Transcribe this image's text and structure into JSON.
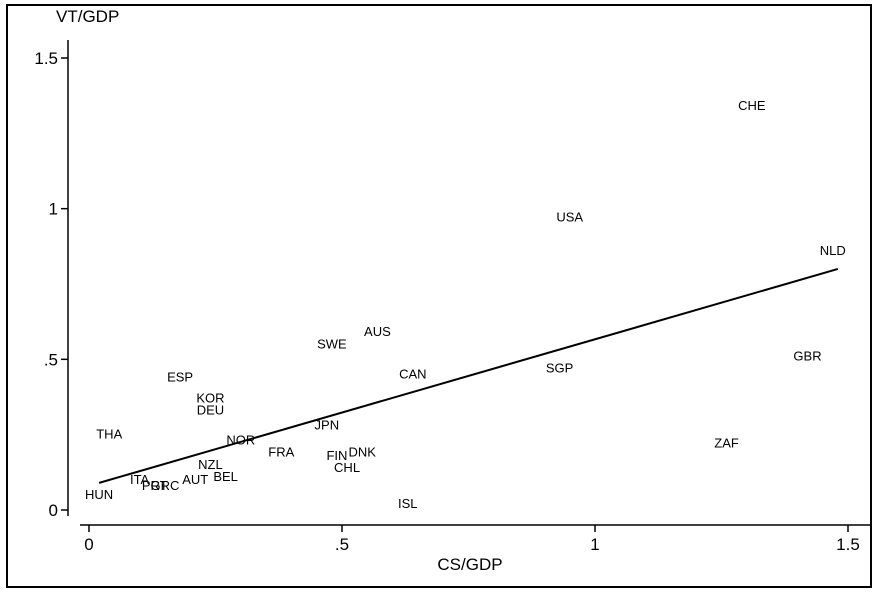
{
  "chart_data": {
    "type": "scatter",
    "xlabel": "CS/GDP",
    "ylabel": "VT/GDP",
    "xlim": [
      0,
      1.5
    ],
    "ylim": [
      0,
      1.5
    ],
    "x_ticks": [
      {
        "value": 0,
        "label": "0"
      },
      {
        "value": 0.5,
        "label": ".5"
      },
      {
        "value": 1,
        "label": "1"
      },
      {
        "value": 1.5,
        "label": "1.5"
      }
    ],
    "y_ticks": [
      {
        "value": 0,
        "label": "0"
      },
      {
        "value": 0.5,
        "label": ".5"
      },
      {
        "value": 1,
        "label": "1"
      },
      {
        "value": 1.5,
        "label": "1.5"
      }
    ],
    "grid": false,
    "points": [
      {
        "label": "CHE",
        "x": 1.31,
        "y": 1.34
      },
      {
        "label": "USA",
        "x": 0.95,
        "y": 0.97
      },
      {
        "label": "NLD",
        "x": 1.47,
        "y": 0.86
      },
      {
        "label": "GBR",
        "x": 1.42,
        "y": 0.51
      },
      {
        "label": "SGP",
        "x": 0.93,
        "y": 0.47
      },
      {
        "label": "ZAF",
        "x": 1.26,
        "y": 0.22
      },
      {
        "label": "AUS",
        "x": 0.57,
        "y": 0.59
      },
      {
        "label": "SWE",
        "x": 0.48,
        "y": 0.55
      },
      {
        "label": "CAN",
        "x": 0.64,
        "y": 0.45
      },
      {
        "label": "ESP",
        "x": 0.18,
        "y": 0.44
      },
      {
        "label": "KOR",
        "x": 0.24,
        "y": 0.37
      },
      {
        "label": "DEU",
        "x": 0.24,
        "y": 0.33
      },
      {
        "label": "JPN",
        "x": 0.47,
        "y": 0.28
      },
      {
        "label": "THA",
        "x": 0.04,
        "y": 0.25
      },
      {
        "label": "NOR",
        "x": 0.3,
        "y": 0.23
      },
      {
        "label": "FRA",
        "x": 0.38,
        "y": 0.19
      },
      {
        "label": "FIN",
        "x": 0.49,
        "y": 0.18
      },
      {
        "label": "DNK",
        "x": 0.54,
        "y": 0.19
      },
      {
        "label": "CHL",
        "x": 0.51,
        "y": 0.14
      },
      {
        "label": "NZL",
        "x": 0.24,
        "y": 0.15
      },
      {
        "label": "ITA",
        "x": 0.1,
        "y": 0.1
      },
      {
        "label": "AUT",
        "x": 0.21,
        "y": 0.1
      },
      {
        "label": "BEL",
        "x": 0.27,
        "y": 0.11
      },
      {
        "label": "PRT",
        "x": 0.13,
        "y": 0.08
      },
      {
        "label": "GRC",
        "x": 0.15,
        "y": 0.08
      },
      {
        "label": "HUN",
        "x": 0.02,
        "y": 0.05
      },
      {
        "label": "ISL",
        "x": 0.63,
        "y": 0.02
      }
    ],
    "fit_line": {
      "x": [
        0.02,
        1.48
      ],
      "y": [
        0.09,
        0.8
      ]
    }
  }
}
